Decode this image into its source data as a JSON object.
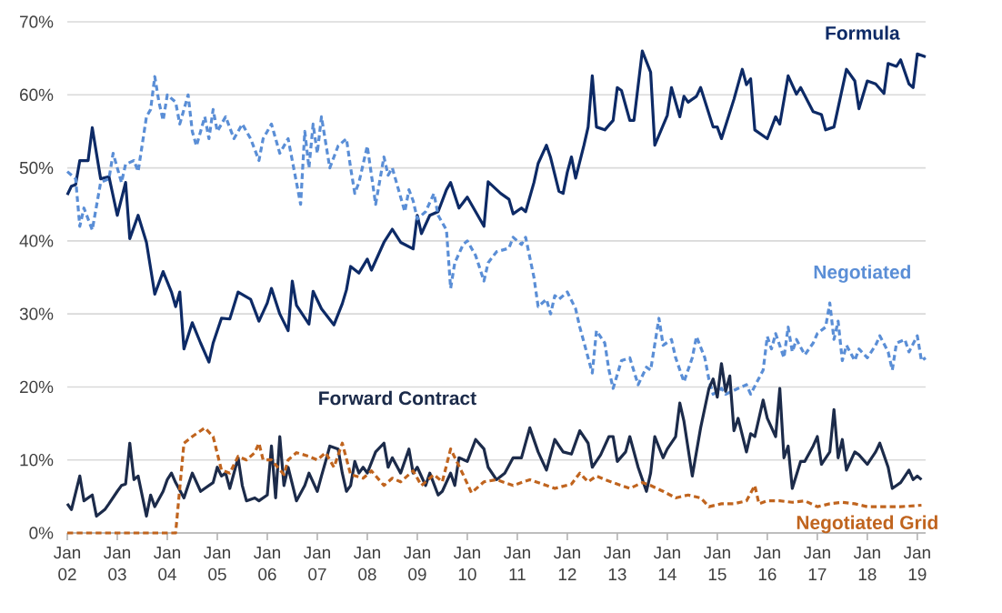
{
  "chart_data": {
    "type": "line",
    "xlim": [
      "2002-01",
      "2019-03"
    ],
    "ylim": [
      0,
      70
    ],
    "xticks": [
      {
        "value": "2002-01",
        "label": "Jan 02"
      },
      {
        "value": "2003-01",
        "label": "Jan 03"
      },
      {
        "value": "2004-01",
        "label": "Jan 04"
      },
      {
        "value": "2005-01",
        "label": "Jan 05"
      },
      {
        "value": "2006-01",
        "label": "Jan 06"
      },
      {
        "value": "2007-01",
        "label": "Jan 07"
      },
      {
        "value": "2008-01",
        "label": "Jan 08"
      },
      {
        "value": "2009-01",
        "label": "Jan 09"
      },
      {
        "value": "2010-01",
        "label": "Jan 10"
      },
      {
        "value": "2011-01",
        "label": "Jan 11"
      },
      {
        "value": "2012-01",
        "label": "Jan 12"
      },
      {
        "value": "2013-01",
        "label": "Jan 13"
      },
      {
        "value": "2014-01",
        "label": "Jan 14"
      },
      {
        "value": "2015-01",
        "label": "Jan 15"
      },
      {
        "value": "2016-01",
        "label": "Jan 16"
      },
      {
        "value": "2017-01",
        "label": "Jan 17"
      },
      {
        "value": "2018-01",
        "label": "Jan 18"
      },
      {
        "value": "2019-01",
        "label": "Jan 19"
      }
    ],
    "yticks": [
      {
        "value": 0,
        "label": "0%"
      },
      {
        "value": 10,
        "label": "10%"
      },
      {
        "value": 20,
        "label": "20%"
      },
      {
        "value": 30,
        "label": "30%"
      },
      {
        "value": 40,
        "label": "40%"
      },
      {
        "value": 50,
        "label": "50%"
      },
      {
        "value": 60,
        "label": "60%"
      },
      {
        "value": 70,
        "label": "70%"
      }
    ],
    "grid": "y",
    "legend": false,
    "marker": "none",
    "series": [
      {
        "name": "Formula",
        "color": "#0d2a66",
        "line_style": "solid",
        "x": [
          "2002-01",
          "2002-02",
          "2002-03",
          "2002-04",
          "2002-06",
          "2002-07",
          "2002-09",
          "2002-11",
          "2003-01",
          "2003-03",
          "2003-04",
          "2003-06",
          "2003-08",
          "2003-10",
          "2003-12",
          "2004-02",
          "2004-03",
          "2004-04",
          "2004-05",
          "2004-07",
          "2004-09",
          "2004-11",
          "2004-12",
          "2005-02",
          "2005-04",
          "2005-06",
          "2005-09",
          "2005-11",
          "2006-01",
          "2006-02",
          "2006-04",
          "2006-06",
          "2006-07",
          "2006-08",
          "2006-11",
          "2006-12",
          "2007-02",
          "2007-05",
          "2007-07",
          "2007-08",
          "2007-09",
          "2007-11",
          "2008-01",
          "2008-02",
          "2008-05",
          "2008-07",
          "2008-09",
          "2008-12",
          "2009-01",
          "2009-02",
          "2009-04",
          "2009-06",
          "2009-08",
          "2009-09",
          "2009-11",
          "2010-01",
          "2010-03",
          "2010-05",
          "2010-06",
          "2010-09",
          "2010-11",
          "2010-12",
          "2011-02",
          "2011-03",
          "2011-05",
          "2011-06",
          "2011-08",
          "2011-09",
          "2011-11",
          "2011-12",
          "2012-01",
          "2012-02",
          "2012-03",
          "2012-05",
          "2012-06",
          "2012-07",
          "2012-08",
          "2012-10",
          "2012-12",
          "2013-01",
          "2013-02",
          "2013-04",
          "2013-05",
          "2013-07",
          "2013-09",
          "2013-10",
          "2014-01",
          "2014-02",
          "2014-04",
          "2014-05",
          "2014-06",
          "2014-08",
          "2014-09",
          "2014-12",
          "2015-01",
          "2015-02",
          "2015-05",
          "2015-07",
          "2015-08",
          "2015-09",
          "2015-10",
          "2016-01",
          "2016-03",
          "2016-04",
          "2016-06",
          "2016-08",
          "2016-09",
          "2016-12",
          "2017-02",
          "2017-03",
          "2017-05",
          "2017-08",
          "2017-10",
          "2017-11",
          "2018-01",
          "2018-03",
          "2018-05",
          "2018-06",
          "2018-08",
          "2018-09",
          "2018-11",
          "2018-12",
          "2019-01",
          "2019-03"
        ],
        "values": [
          46.3,
          47.5,
          47.7,
          51,
          51,
          55.5,
          48.5,
          48.8,
          43.5,
          48,
          40.3,
          43.5,
          39.8,
          32.7,
          35.8,
          33,
          31,
          33,
          25.2,
          28.8,
          26,
          23.4,
          26,
          29.4,
          29.3,
          33,
          32,
          29,
          31.5,
          33.5,
          30,
          27.7,
          34.5,
          31.2,
          28.6,
          33.1,
          30.7,
          28.5,
          31.4,
          33.3,
          36.5,
          35.6,
          37.5,
          36,
          39.8,
          41.6,
          39.8,
          38.9,
          43.5,
          41,
          43.5,
          44,
          47,
          48,
          44.5,
          46,
          44,
          42,
          48.1,
          46.5,
          45.7,
          43.7,
          44.5,
          44,
          48,
          50.6,
          53.1,
          51.4,
          46.8,
          46.5,
          49.4,
          51.5,
          48.6,
          53.1,
          55.6,
          62.6,
          55.6,
          55.2,
          56.5,
          61,
          60.6,
          56.5,
          56.5,
          66,
          63.1,
          53.1,
          57.2,
          61,
          57,
          59.8,
          59,
          59.8,
          61,
          55.6,
          55.6,
          54,
          59.4,
          63.5,
          61.4,
          62.2,
          55.2,
          54,
          57,
          56,
          62.6,
          60.1,
          61,
          57.7,
          57.3,
          55.2,
          55.6,
          63.5,
          61.9,
          58.1,
          61.9,
          61.5,
          60.2,
          64.3,
          63.9,
          64.8,
          61.5,
          61,
          65.6,
          65.2
        ]
      },
      {
        "name": "Negotiated",
        "color": "#5a8ed6",
        "line_style": "dashed",
        "x": [
          "2002-01",
          "2002-03",
          "2002-04",
          "2002-05",
          "2002-07",
          "2002-09",
          "2002-11",
          "2002-12",
          "2003-02",
          "2003-03",
          "2003-05",
          "2003-06",
          "2003-08",
          "2003-09",
          "2003-10",
          "2003-11",
          "2003-12",
          "2004-01",
          "2004-03",
          "2004-04",
          "2004-06",
          "2004-07",
          "2004-08",
          "2004-10",
          "2004-11",
          "2004-12",
          "2005-01",
          "2005-03",
          "2005-05",
          "2005-07",
          "2005-09",
          "2005-11",
          "2005-12",
          "2006-02",
          "2006-04",
          "2006-06",
          "2006-08",
          "2006-09",
          "2006-10",
          "2006-11",
          "2006-12",
          "2007-01",
          "2007-02",
          "2007-04",
          "2007-06",
          "2007-08",
          "2007-09",
          "2007-10",
          "2007-11",
          "2008-01",
          "2008-02",
          "2008-03",
          "2008-05",
          "2008-06",
          "2008-07",
          "2008-08",
          "2008-10",
          "2008-11",
          "2008-12",
          "2009-01",
          "2009-03",
          "2009-05",
          "2009-06",
          "2009-08",
          "2009-09",
          "2009-10",
          "2009-12",
          "2010-01",
          "2010-03",
          "2010-05",
          "2010-06",
          "2010-08",
          "2010-11",
          "2010-12",
          "2011-02",
          "2011-03",
          "2011-05",
          "2011-06",
          "2011-08",
          "2011-09",
          "2011-10",
          "2011-11",
          "2012-01",
          "2012-03",
          "2012-04",
          "2012-07",
          "2012-08",
          "2012-10",
          "2012-11",
          "2012-12",
          "2013-02",
          "2013-04",
          "2013-06",
          "2013-08",
          "2013-09",
          "2013-11",
          "2013-12",
          "2014-02",
          "2014-03",
          "2014-05",
          "2014-07",
          "2014-08",
          "2014-10",
          "2014-11",
          "2014-12",
          "2015-02",
          "2015-03",
          "2015-06",
          "2015-08",
          "2015-09",
          "2015-12",
          "2016-01",
          "2016-02",
          "2016-03",
          "2016-05",
          "2016-06",
          "2016-07",
          "2016-08",
          "2016-10",
          "2016-12",
          "2017-01",
          "2017-03",
          "2017-04",
          "2017-05",
          "2017-06",
          "2017-07",
          "2017-08",
          "2017-10",
          "2017-11",
          "2018-01",
          "2018-03",
          "2018-04",
          "2018-06",
          "2018-07",
          "2018-08",
          "2018-10",
          "2018-11",
          "2019-01",
          "2019-02",
          "2019-03"
        ],
        "values": [
          49.5,
          48.5,
          42,
          44.5,
          41.5,
          48,
          48.5,
          52,
          48,
          50.5,
          51,
          49.5,
          57,
          58,
          62.5,
          59,
          56.5,
          60,
          59,
          56,
          60,
          55,
          53,
          57,
          54,
          58,
          55,
          57,
          54,
          56,
          54,
          51,
          54,
          56,
          52,
          54,
          48,
          45,
          55,
          50,
          56,
          52,
          57,
          50,
          53,
          54,
          50,
          46.5,
          48,
          53,
          49,
          45,
          51.5,
          49,
          50,
          48,
          44,
          47,
          45.5,
          43,
          44,
          46.5,
          43.5,
          41.5,
          33.5,
          37,
          39.5,
          40,
          38,
          34.5,
          37,
          38.5,
          39,
          40.5,
          39.5,
          40.5,
          35,
          31,
          32,
          30,
          32.5,
          32,
          33,
          30.7,
          28.2,
          21.9,
          27.7,
          26,
          22.3,
          19.8,
          23.6,
          24,
          20.3,
          22.7,
          22.3,
          29.4,
          25.7,
          26.5,
          24,
          20.7,
          24,
          26.9,
          24,
          21,
          19,
          19.8,
          19,
          19.8,
          20.3,
          19,
          22.3,
          26.9,
          25.2,
          27.3,
          24,
          28.2,
          24.8,
          26.5,
          24.4,
          26,
          27.3,
          28.2,
          31.5,
          26.5,
          29,
          23.6,
          25.7,
          23.6,
          25.2,
          24,
          25.7,
          27,
          24.8,
          22.3,
          26,
          26.5,
          24.8,
          27,
          23.6,
          24
        ]
      },
      {
        "name": "Forward Contract",
        "color": "#1c2b4a",
        "line_style": "solid",
        "x": [
          "2002-01",
          "2002-02",
          "2002-04",
          "2002-05",
          "2002-07",
          "2002-08",
          "2002-10",
          "2002-11",
          "2003-01",
          "2003-02",
          "2003-03",
          "2003-04",
          "2003-05",
          "2003-06",
          "2003-08",
          "2003-09",
          "2003-10",
          "2003-12",
          "2004-01",
          "2004-02",
          "2004-03",
          "2004-05",
          "2004-06",
          "2004-07",
          "2004-09",
          "2004-10",
          "2004-12",
          "2005-01",
          "2005-02",
          "2005-03",
          "2005-04",
          "2005-06",
          "2005-07",
          "2005-08",
          "2005-10",
          "2005-11",
          "2006-01",
          "2006-02",
          "2006-03",
          "2006-04",
          "2006-05",
          "2006-06",
          "2006-08",
          "2006-10",
          "2006-11",
          "2007-01",
          "2007-02",
          "2007-03",
          "2007-04",
          "2007-06",
          "2007-07",
          "2007-08",
          "2007-09",
          "2007-10",
          "2007-11",
          "2007-12",
          "2008-01",
          "2008-03",
          "2008-05",
          "2008-06",
          "2008-07",
          "2008-09",
          "2008-11",
          "2008-12",
          "2009-01",
          "2009-03",
          "2009-04",
          "2009-06",
          "2009-07",
          "2009-09",
          "2009-10",
          "2009-11",
          "2010-01",
          "2010-03",
          "2010-05",
          "2010-06",
          "2010-08",
          "2010-10",
          "2010-12",
          "2011-02",
          "2011-04",
          "2011-06",
          "2011-08",
          "2011-10",
          "2011-12",
          "2012-02",
          "2012-04",
          "2012-06",
          "2012-07",
          "2012-09",
          "2012-11",
          "2012-12",
          "2013-01",
          "2013-03",
          "2013-04",
          "2013-06",
          "2013-08",
          "2013-09",
          "2013-10",
          "2013-12",
          "2014-01",
          "2014-03",
          "2014-04",
          "2014-05",
          "2014-07",
          "2014-09",
          "2014-11",
          "2014-12",
          "2015-01",
          "2015-02",
          "2015-03",
          "2015-04",
          "2015-05",
          "2015-06",
          "2015-08",
          "2015-09",
          "2015-10",
          "2015-12",
          "2016-01",
          "2016-03",
          "2016-04",
          "2016-05",
          "2016-06",
          "2016-07",
          "2016-09",
          "2016-10",
          "2016-12",
          "2017-01",
          "2017-02",
          "2017-04",
          "2017-05",
          "2017-06",
          "2017-07",
          "2017-08",
          "2017-10",
          "2017-11",
          "2018-01",
          "2018-03",
          "2018-04",
          "2018-06",
          "2018-07",
          "2018-09",
          "2018-11",
          "2018-12",
          "2019-01",
          "2019-02"
        ],
        "values": [
          4,
          3.2,
          7.8,
          4.4,
          5.2,
          2.3,
          3.2,
          4,
          5.7,
          6.5,
          6.7,
          12.3,
          7.3,
          7.8,
          2.3,
          5.2,
          3.6,
          5.7,
          7.3,
          8.2,
          6.9,
          4.8,
          6.5,
          8.2,
          5.7,
          6.1,
          6.9,
          9,
          7.8,
          8.2,
          6.1,
          10.3,
          6.5,
          4.4,
          4.8,
          4.4,
          5.2,
          11.9,
          4.8,
          13.2,
          6.5,
          9,
          4.4,
          6.5,
          8.2,
          5.7,
          7.8,
          9.8,
          11.9,
          11.5,
          8.2,
          5.7,
          6.5,
          9.8,
          8.2,
          9,
          8.2,
          11.1,
          12.3,
          9,
          10.3,
          8.2,
          11.5,
          8.2,
          9,
          6.5,
          8.2,
          5.2,
          5.7,
          8.2,
          6.5,
          10.3,
          9.8,
          12.8,
          11.5,
          9,
          7.3,
          8.2,
          10.3,
          10.3,
          14.4,
          11.1,
          8.6,
          12.8,
          11.1,
          10.8,
          14,
          12.3,
          9,
          10.7,
          13.2,
          13.2,
          9.8,
          11.1,
          13.2,
          9,
          5.7,
          8.2,
          13.2,
          10.3,
          11.5,
          13.2,
          17.8,
          15.3,
          7.8,
          14.4,
          19.8,
          21.1,
          18.6,
          23.2,
          19.4,
          21.5,
          14,
          15.7,
          11.1,
          13.6,
          13.2,
          18.2,
          15.7,
          13.2,
          19.8,
          10.3,
          11.9,
          6.1,
          9.8,
          9.8,
          11.9,
          13.2,
          9.4,
          11.1,
          16.9,
          10.3,
          12.8,
          8.6,
          11.1,
          10.7,
          9.4,
          11.1,
          12.3,
          9,
          6.1,
          6.9,
          8.6,
          7.3,
          7.8,
          7.3
        ]
      },
      {
        "name": "Negotiated Grid",
        "color": "#c0641e",
        "line_style": "dashed",
        "x": [
          "2002-01",
          "2004-03",
          "2004-05",
          "2004-07",
          "2004-10",
          "2004-12",
          "2005-02",
          "2005-04",
          "2005-06",
          "2005-08",
          "2005-10",
          "2005-11",
          "2005-12",
          "2006-02",
          "2006-05",
          "2006-06",
          "2006-08",
          "2006-11",
          "2007-01",
          "2007-03",
          "2007-05",
          "2007-07",
          "2007-09",
          "2007-12",
          "2008-02",
          "2008-05",
          "2008-07",
          "2008-09",
          "2008-12",
          "2009-02",
          "2009-05",
          "2009-07",
          "2009-09",
          "2009-12",
          "2010-02",
          "2010-05",
          "2010-08",
          "2010-12",
          "2011-04",
          "2011-08",
          "2011-10",
          "2012-02",
          "2012-04",
          "2012-06",
          "2012-08",
          "2012-10",
          "2013-01",
          "2013-04",
          "2013-07",
          "2013-09",
          "2013-12",
          "2014-03",
          "2014-06",
          "2014-09",
          "2014-11",
          "2015-02",
          "2015-05",
          "2015-08",
          "2015-10",
          "2015-11",
          "2016-01",
          "2016-04",
          "2016-07",
          "2016-10",
          "2017-01",
          "2017-04",
          "2017-07",
          "2017-10",
          "2018-01",
          "2018-04",
          "2018-09",
          "2019-02"
        ],
        "values": [
          0,
          0,
          12.3,
          13.2,
          14.4,
          13.2,
          8.6,
          8.2,
          10.5,
          10,
          11,
          12.3,
          10,
          10,
          8,
          10,
          11,
          10.5,
          10,
          11,
          9,
          12.3,
          8,
          7.5,
          8.5,
          6.5,
          7.5,
          7,
          8.5,
          6.5,
          8,
          7,
          11.5,
          8,
          5.5,
          7,
          7.3,
          6.5,
          7.3,
          6.5,
          6.1,
          6.7,
          8.2,
          7,
          7.8,
          7.3,
          6.7,
          6.1,
          6.9,
          6.5,
          5.7,
          4.8,
          5.2,
          4.8,
          3.6,
          4,
          4,
          4.4,
          6.5,
          4,
          4.4,
          4.4,
          4.2,
          4.4,
          3.6,
          4,
          4.2,
          4,
          3.6,
          3.6,
          3.6,
          3.8
        ]
      }
    ]
  }
}
